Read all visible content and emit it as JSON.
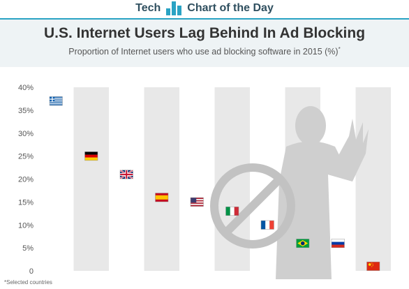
{
  "branding": {
    "left": "Tech",
    "right": "Chart of the Day"
  },
  "header": {
    "title": "U.S. Internet Users Lag Behind In Ad Blocking",
    "subtitle": "Proportion of Internet users who use ad blocking software in 2015 (%)",
    "subtitle_mark": "*"
  },
  "footnote": "*Selected countries",
  "colors": {
    "accent": "#2aa3c4",
    "band": "#e8e8e8",
    "silhouette": "#cfcfcf"
  },
  "chart_data": {
    "type": "scatter",
    "title": "U.S. Internet Users Lag Behind In Ad Blocking",
    "subtitle": "Proportion of Internet users who use ad blocking software in 2015 (%)",
    "y_ticks": [
      "0",
      "5%",
      "10%",
      "15%",
      "20%",
      "25%",
      "30%",
      "35%",
      "40%"
    ],
    "ylim": [
      0,
      40
    ],
    "grid": false,
    "categories": [
      "Greece",
      "Germany",
      "United Kingdom",
      "Spain",
      "United States",
      "Italy",
      "France",
      "Brazil",
      "Russia",
      "China"
    ],
    "values": [
      37,
      25,
      21,
      16,
      15,
      13,
      10,
      6,
      6,
      1
    ],
    "marker_icons": [
      "flag-greece-icon",
      "flag-germany-icon",
      "flag-uk-icon",
      "flag-spain-icon",
      "flag-usa-icon",
      "flag-italy-icon",
      "flag-france-icon",
      "flag-brazil-icon",
      "flag-russia-icon",
      "flag-china-icon"
    ]
  }
}
